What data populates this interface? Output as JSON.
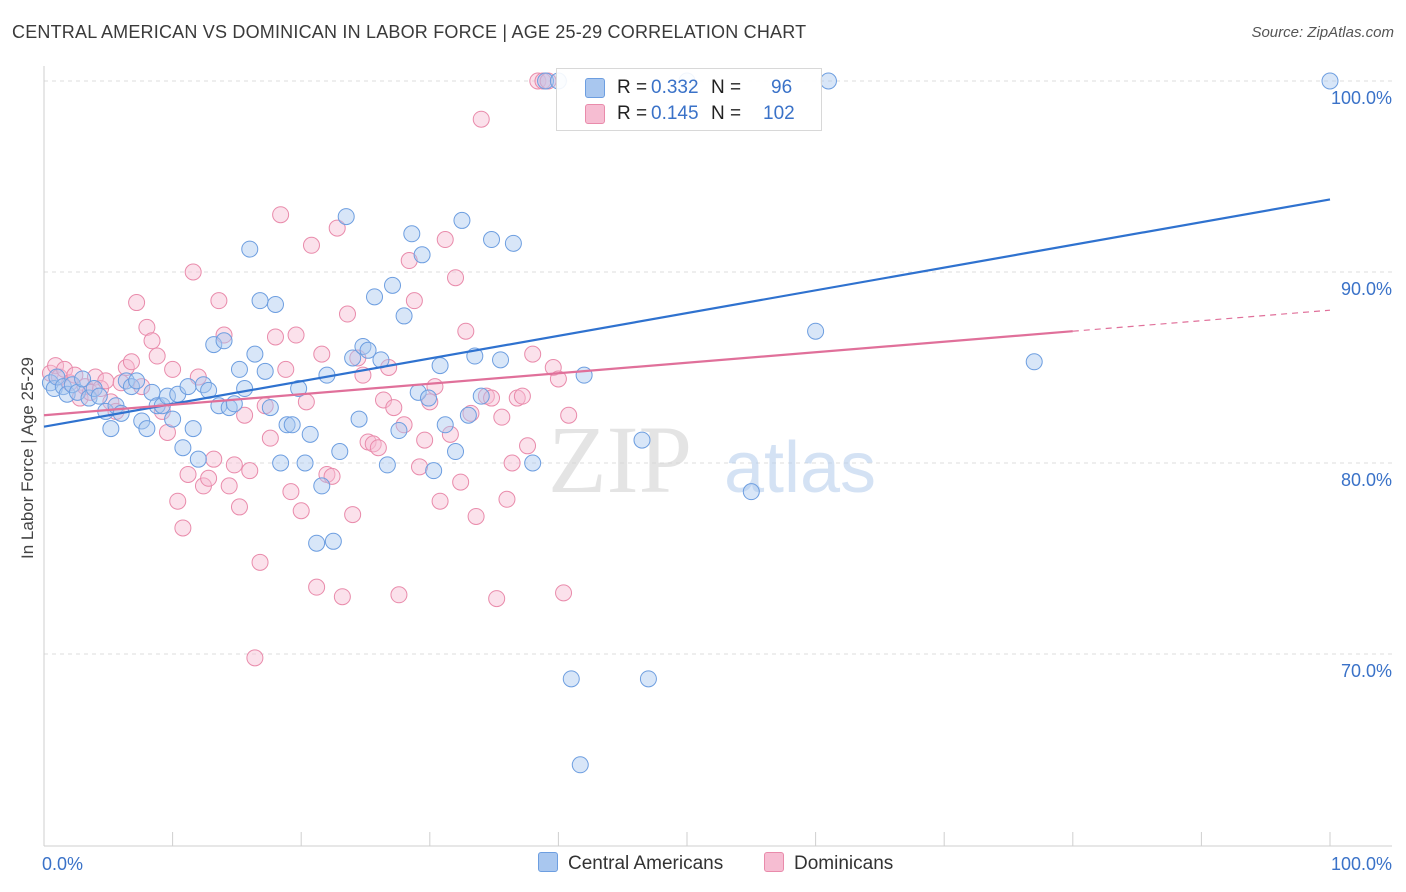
{
  "title": "CENTRAL AMERICAN VS DOMINICAN IN LABOR FORCE | AGE 25-29 CORRELATION CHART",
  "source": "Source: ZipAtlas.com",
  "watermark": {
    "zip": "ZIP",
    "atlas": "atlas"
  },
  "legend": {
    "r_label": "R =",
    "n_label": "N =",
    "rows": [
      {
        "r": "0.332",
        "n": "96"
      },
      {
        "r": "0.145",
        "n": "102"
      }
    ]
  },
  "colors": {
    "blue_fill": "#a9c7ef",
    "blue_stroke": "#6d9ee0",
    "blue_line": "#2f72cf",
    "pink_fill": "#f6bdd2",
    "pink_stroke": "#e98bab",
    "pink_line": "#e0709a",
    "tick_label": "#3a72c8"
  },
  "chart_data": {
    "type": "scatter",
    "title": "CENTRAL AMERICAN VS DOMINICAN IN LABOR FORCE | AGE 25-29 CORRELATION CHART",
    "xlabel": "",
    "ylabel": "In Labor Force | Age 25-29",
    "xlim": [
      0,
      100
    ],
    "ylim": [
      62,
      101.5
    ],
    "x_tick_labels": [
      "0.0%",
      "100.0%"
    ],
    "y_ticks": [
      70,
      80,
      90,
      100
    ],
    "y_tick_labels": [
      "70.0%",
      "80.0%",
      "90.0%",
      "100.0%"
    ],
    "grid": true,
    "legend_position": "top-center",
    "series": [
      {
        "name": "Central Americans",
        "R": 0.332,
        "N": 96,
        "trend": {
          "x": [
            0,
            100
          ],
          "y": [
            81.9,
            93.8
          ]
        },
        "points": [
          [
            0.5,
            84.2
          ],
          [
            0.8,
            83.9
          ],
          [
            1.0,
            84.5
          ],
          [
            1.5,
            84.0
          ],
          [
            1.8,
            83.6
          ],
          [
            2.2,
            84.1
          ],
          [
            2.6,
            83.7
          ],
          [
            3.0,
            84.4
          ],
          [
            3.5,
            83.4
          ],
          [
            3.9,
            83.9
          ],
          [
            4.3,
            83.5
          ],
          [
            4.8,
            82.7
          ],
          [
            5.2,
            81.8
          ],
          [
            5.6,
            83.0
          ],
          [
            6.0,
            82.6
          ],
          [
            6.4,
            84.3
          ],
          [
            6.8,
            84.0
          ],
          [
            7.2,
            84.3
          ],
          [
            7.6,
            82.2
          ],
          [
            8.0,
            81.8
          ],
          [
            8.4,
            83.7
          ],
          [
            8.8,
            83.0
          ],
          [
            9.2,
            83.0
          ],
          [
            9.6,
            83.5
          ],
          [
            10.0,
            82.3
          ],
          [
            10.4,
            83.6
          ],
          [
            10.8,
            80.8
          ],
          [
            11.2,
            84.0
          ],
          [
            11.6,
            81.8
          ],
          [
            12.0,
            80.2
          ],
          [
            12.4,
            84.1
          ],
          [
            12.8,
            83.8
          ],
          [
            13.2,
            86.2
          ],
          [
            13.6,
            83.0
          ],
          [
            14.0,
            86.4
          ],
          [
            14.4,
            82.9
          ],
          [
            14.8,
            83.1
          ],
          [
            15.2,
            84.9
          ],
          [
            15.6,
            83.9
          ],
          [
            16.0,
            91.2
          ],
          [
            16.4,
            85.7
          ],
          [
            16.8,
            88.5
          ],
          [
            17.2,
            84.8
          ],
          [
            17.6,
            82.9
          ],
          [
            18.0,
            88.3
          ],
          [
            18.4,
            80.0
          ],
          [
            18.9,
            82.0
          ],
          [
            19.3,
            82.0
          ],
          [
            19.8,
            83.9
          ],
          [
            20.3,
            80.0
          ],
          [
            20.7,
            81.5
          ],
          [
            21.2,
            75.8
          ],
          [
            21.6,
            78.8
          ],
          [
            22.0,
            84.6
          ],
          [
            22.5,
            75.9
          ],
          [
            23.0,
            80.6
          ],
          [
            23.5,
            92.9
          ],
          [
            24.0,
            85.5
          ],
          [
            24.5,
            82.3
          ],
          [
            24.8,
            86.1
          ],
          [
            25.2,
            85.9
          ],
          [
            25.7,
            88.7
          ],
          [
            26.2,
            85.4
          ],
          [
            26.7,
            79.9
          ],
          [
            27.1,
            89.3
          ],
          [
            27.6,
            81.7
          ],
          [
            28.0,
            87.7
          ],
          [
            28.6,
            92.0
          ],
          [
            29.1,
            83.7
          ],
          [
            29.4,
            90.9
          ],
          [
            29.9,
            83.4
          ],
          [
            30.3,
            79.6
          ],
          [
            30.8,
            85.1
          ],
          [
            31.2,
            82.0
          ],
          [
            32.0,
            80.6
          ],
          [
            32.5,
            92.7
          ],
          [
            33.0,
            82.5
          ],
          [
            33.5,
            85.6
          ],
          [
            34.0,
            83.5
          ],
          [
            34.8,
            91.7
          ],
          [
            35.5,
            85.4
          ],
          [
            36.5,
            91.5
          ],
          [
            38.0,
            80.0
          ],
          [
            39.0,
            100.0
          ],
          [
            42.0,
            84.6
          ],
          [
            46.5,
            81.2
          ],
          [
            50.0,
            100.0
          ],
          [
            55.0,
            78.5
          ],
          [
            60.0,
            86.9
          ],
          [
            61.0,
            100.0
          ],
          [
            77.0,
            85.3
          ],
          [
            40.0,
            100.0
          ],
          [
            41.0,
            68.7
          ],
          [
            47.0,
            68.7
          ],
          [
            41.7,
            64.2
          ],
          [
            100.0,
            100.0
          ]
        ]
      },
      {
        "name": "Dominicans",
        "R": 0.145,
        "N": 102,
        "trend": {
          "x": [
            0,
            80
          ],
          "y": [
            82.5,
            86.9
          ]
        },
        "trend_dashed": {
          "x": [
            80,
            100
          ],
          "y": [
            86.9,
            88.0
          ]
        },
        "points": [
          [
            0.5,
            84.7
          ],
          [
            0.9,
            85.1
          ],
          [
            1.2,
            84.5
          ],
          [
            1.6,
            84.9
          ],
          [
            2.0,
            84.2
          ],
          [
            2.4,
            84.6
          ],
          [
            2.8,
            83.4
          ],
          [
            3.2,
            84.0
          ],
          [
            3.6,
            83.7
          ],
          [
            4.0,
            84.5
          ],
          [
            4.4,
            83.9
          ],
          [
            4.8,
            84.3
          ],
          [
            5.2,
            83.2
          ],
          [
            5.6,
            82.7
          ],
          [
            6.0,
            84.2
          ],
          [
            6.4,
            85.0
          ],
          [
            6.8,
            85.3
          ],
          [
            7.2,
            88.4
          ],
          [
            7.6,
            84.0
          ],
          [
            8.0,
            87.1
          ],
          [
            8.4,
            86.4
          ],
          [
            8.8,
            85.6
          ],
          [
            9.2,
            82.7
          ],
          [
            9.6,
            81.6
          ],
          [
            10.0,
            84.9
          ],
          [
            10.4,
            78.0
          ],
          [
            10.8,
            76.6
          ],
          [
            11.2,
            79.4
          ],
          [
            11.6,
            90.0
          ],
          [
            12.0,
            84.5
          ],
          [
            12.4,
            78.8
          ],
          [
            12.8,
            79.2
          ],
          [
            13.2,
            80.2
          ],
          [
            13.6,
            88.5
          ],
          [
            14.0,
            86.7
          ],
          [
            14.4,
            78.8
          ],
          [
            14.8,
            79.9
          ],
          [
            15.2,
            77.7
          ],
          [
            15.6,
            82.5
          ],
          [
            16.0,
            79.6
          ],
          [
            16.4,
            69.8
          ],
          [
            16.8,
            74.8
          ],
          [
            17.2,
            83.0
          ],
          [
            17.6,
            81.3
          ],
          [
            18.0,
            86.6
          ],
          [
            18.4,
            93.0
          ],
          [
            18.8,
            84.9
          ],
          [
            19.2,
            78.5
          ],
          [
            19.6,
            86.7
          ],
          [
            20.0,
            77.5
          ],
          [
            20.4,
            83.2
          ],
          [
            20.8,
            91.4
          ],
          [
            21.2,
            73.5
          ],
          [
            21.6,
            85.7
          ],
          [
            22.0,
            79.4
          ],
          [
            22.4,
            79.3
          ],
          [
            22.8,
            92.3
          ],
          [
            23.2,
            73.0
          ],
          [
            23.6,
            87.8
          ],
          [
            24.0,
            77.3
          ],
          [
            24.4,
            85.5
          ],
          [
            24.8,
            84.6
          ],
          [
            25.2,
            81.1
          ],
          [
            25.6,
            81.0
          ],
          [
            26.0,
            80.8
          ],
          [
            26.4,
            83.3
          ],
          [
            26.8,
            85.0
          ],
          [
            27.2,
            82.9
          ],
          [
            27.6,
            73.1
          ],
          [
            28.0,
            82.0
          ],
          [
            28.4,
            90.6
          ],
          [
            28.8,
            88.5
          ],
          [
            29.2,
            79.8
          ],
          [
            29.6,
            81.2
          ],
          [
            30.0,
            83.2
          ],
          [
            30.4,
            84.0
          ],
          [
            30.8,
            78.0
          ],
          [
            31.2,
            91.7
          ],
          [
            31.6,
            81.5
          ],
          [
            32.0,
            89.7
          ],
          [
            32.4,
            79.0
          ],
          [
            32.8,
            86.9
          ],
          [
            33.2,
            82.6
          ],
          [
            33.6,
            77.2
          ],
          [
            34.0,
            98.0
          ],
          [
            34.4,
            83.5
          ],
          [
            34.8,
            83.4
          ],
          [
            35.2,
            72.9
          ],
          [
            35.6,
            82.4
          ],
          [
            36.0,
            78.1
          ],
          [
            36.4,
            80.0
          ],
          [
            36.8,
            83.4
          ],
          [
            37.2,
            83.5
          ],
          [
            37.6,
            80.9
          ],
          [
            38.0,
            85.7
          ],
          [
            38.4,
            100.0
          ],
          [
            38.8,
            100.0
          ],
          [
            39.2,
            100.0
          ],
          [
            39.6,
            85.0
          ],
          [
            40.0,
            84.4
          ],
          [
            40.4,
            73.2
          ],
          [
            40.8,
            82.5
          ]
        ]
      }
    ]
  }
}
